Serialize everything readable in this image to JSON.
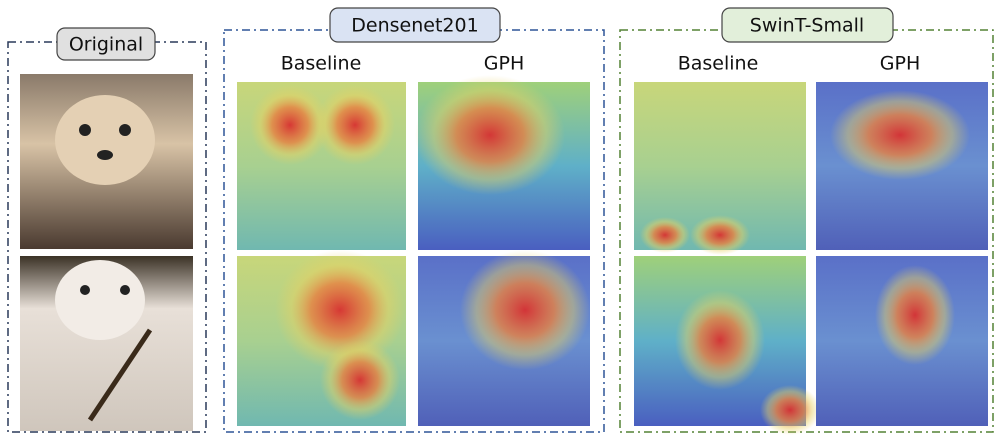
{
  "panels": [
    {
      "label": "Original"
    },
    {
      "label": "Densenet201",
      "columns": [
        "Baseline",
        "GPH"
      ]
    },
    {
      "label": "SwinT-Small",
      "columns": [
        "Baseline",
        "GPH"
      ]
    }
  ]
}
